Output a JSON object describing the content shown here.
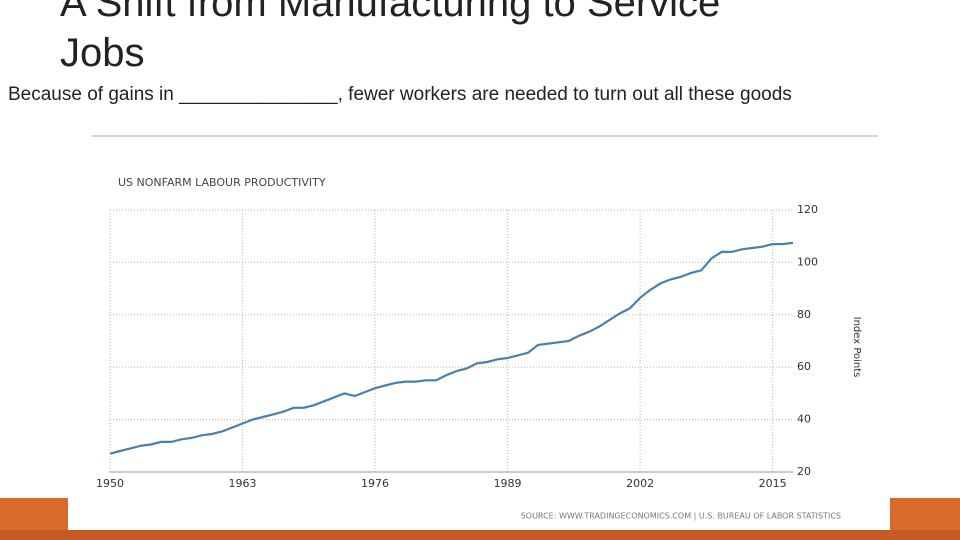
{
  "slide": {
    "title": "A Shift from Manufacturing to Service Jobs",
    "body": "Because of gains in _______________, fewer workers are needed to turn out all these goods"
  },
  "chart_data": {
    "type": "line",
    "title": "US NONFARM LABOUR PRODUCTIVITY",
    "y_label": "Index Points",
    "source": "SOURCE: WWW.TRADINGECONOMICS.COM | U.S. BUREAU OF LABOR STATISTICS",
    "color": "#4a7fb0",
    "grid": true,
    "x": [
      1950,
      1951,
      1952,
      1953,
      1954,
      1955,
      1956,
      1957,
      1958,
      1959,
      1960,
      1961,
      1962,
      1963,
      1964,
      1965,
      1966,
      1967,
      1968,
      1969,
      1970,
      1971,
      1972,
      1973,
      1974,
      1975,
      1976,
      1977,
      1978,
      1979,
      1980,
      1981,
      1982,
      1983,
      1984,
      1985,
      1986,
      1987,
      1988,
      1989,
      1990,
      1991,
      1992,
      1993,
      1994,
      1995,
      1996,
      1997,
      1998,
      1999,
      2000,
      2001,
      2002,
      2003,
      2004,
      2005,
      2006,
      2007,
      2008,
      2009,
      2010,
      2011,
      2012,
      2013,
      2014,
      2015,
      2016,
      2017
    ],
    "values": [
      27,
      28,
      29,
      30,
      30.5,
      31.5,
      31.5,
      32.5,
      33,
      34,
      34.5,
      35.5,
      37,
      38.5,
      40,
      41,
      42,
      43,
      44.5,
      44.5,
      45.5,
      47,
      48.5,
      50,
      49,
      50.5,
      52,
      53,
      54,
      54.5,
      54.5,
      55,
      55,
      57,
      58.5,
      59.5,
      61.5,
      62,
      63,
      63.5,
      64.5,
      65.5,
      68.5,
      69,
      69.5,
      70,
      72,
      73.5,
      75.5,
      78,
      80.5,
      82.5,
      86.5,
      89.5,
      92,
      93.5,
      94.5,
      96,
      97,
      101.5,
      104,
      104,
      105,
      105.5,
      106,
      107,
      107,
      107.5
    ],
    "xlim": [
      1950,
      2017
    ],
    "ylim": [
      20,
      120
    ],
    "xticks": [
      1950,
      1963,
      1976,
      1989,
      2002,
      2015
    ],
    "yticks": [
      20,
      40,
      60,
      80,
      100,
      120
    ]
  }
}
